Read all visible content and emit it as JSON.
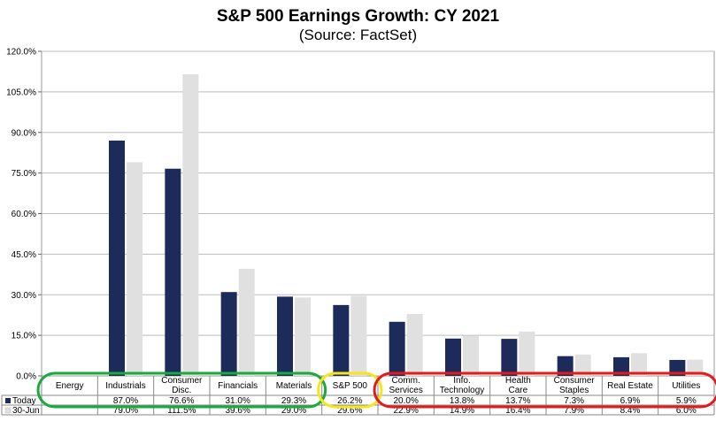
{
  "chart_data": {
    "type": "bar",
    "title": "S&P 500 Earnings Growth: CY 2021",
    "subtitle": "(Source: FactSet)",
    "categories": [
      [
        "Energy"
      ],
      [
        "Industrials"
      ],
      [
        "Consumer",
        "Disc."
      ],
      [
        "Financials"
      ],
      [
        "Materials"
      ],
      [
        "S&P 500"
      ],
      [
        "Comm.",
        "Services"
      ],
      [
        "Info.",
        "Technology"
      ],
      [
        "Health",
        "Care"
      ],
      [
        "Consumer",
        "Staples"
      ],
      [
        "Real Estate"
      ],
      [
        "Utilities"
      ]
    ],
    "series": [
      {
        "name": "Today",
        "color": "#1c2b5a",
        "values": [
          null,
          87.0,
          76.6,
          31.0,
          29.3,
          26.2,
          20.0,
          13.8,
          13.7,
          7.3,
          6.9,
          5.9
        ],
        "labels": [
          "",
          "87.0%",
          "76.6%",
          "31.0%",
          "29.3%",
          "26.2%",
          "20.0%",
          "13.8%",
          "13.7%",
          "7.3%",
          "6.9%",
          "5.9%"
        ]
      },
      {
        "name": "30-Jun",
        "color": "#e0e0e0",
        "values": [
          null,
          79.0,
          111.5,
          39.6,
          29.0,
          29.6,
          22.9,
          14.9,
          16.4,
          7.9,
          8.4,
          6.0
        ],
        "labels": [
          "",
          "79.0%",
          "111.5%",
          "39.6%",
          "29.0%",
          "29.6%",
          "22.9%",
          "14.9%",
          "16.4%",
          "7.9%",
          "8.4%",
          "6.0%"
        ]
      }
    ],
    "ylim": [
      0,
      120
    ],
    "yticks": [
      "0.0%",
      "15.0%",
      "30.0%",
      "45.0%",
      "60.0%",
      "75.0%",
      "90.0%",
      "105.0%",
      "120.0%"
    ],
    "ytick_values": [
      0,
      15,
      30,
      45,
      60,
      75,
      90,
      105,
      120
    ],
    "highlights": [
      {
        "color": "#1aaa3c",
        "from": 0,
        "to": 4
      },
      {
        "color": "#f7e51a",
        "from": 5,
        "to": 5
      },
      {
        "color": "#e31b1b",
        "from": 6,
        "to": 11
      }
    ]
  }
}
